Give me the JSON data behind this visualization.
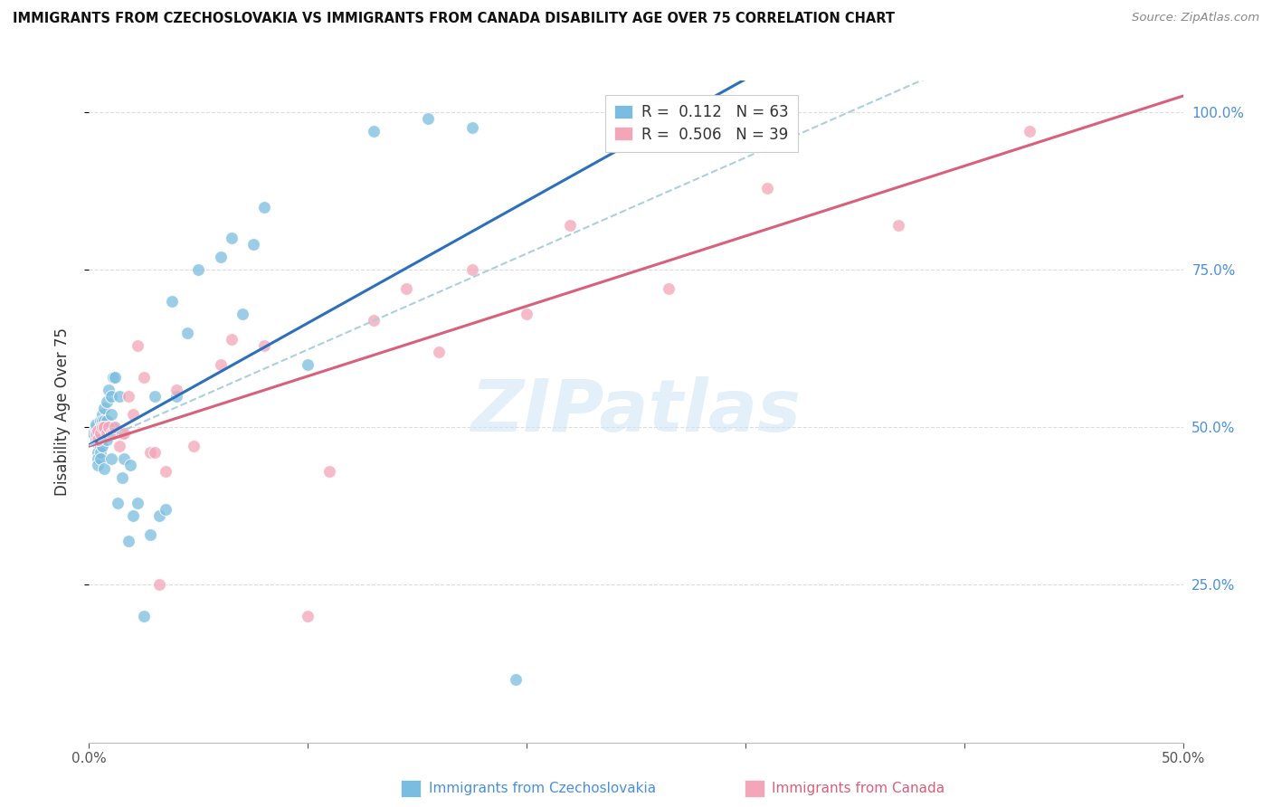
{
  "title": "IMMIGRANTS FROM CZECHOSLOVAKIA VS IMMIGRANTS FROM CANADA DISABILITY AGE OVER 75 CORRELATION CHART",
  "source": "Source: ZipAtlas.com",
  "ylabel": "Disability Age Over 75",
  "xmin": 0.0,
  "xmax": 0.5,
  "ymin": 0.0,
  "ymax": 1.05,
  "y_tick_labels": [
    "25.0%",
    "50.0%",
    "75.0%",
    "100.0%"
  ],
  "y_tick_positions": [
    0.25,
    0.5,
    0.75,
    1.0
  ],
  "x_tick_positions": [
    0.0,
    0.1,
    0.2,
    0.3,
    0.4,
    0.5
  ],
  "legend_label1": "Immigrants from Czechoslovakia",
  "legend_label2": "Immigrants from Canada",
  "legend_R1_val": "0.112",
  "legend_N1_val": "63",
  "legend_R2_val": "0.506",
  "legend_N2_val": "39",
  "color_blue": "#7bbde0",
  "color_pink": "#f4a5b8",
  "color_blue_line": "#2c6fbe",
  "color_pink_line": "#d9607a",
  "color_dashed": "#aacfdf",
  "watermark_text": "ZIPatlas",
  "blue_x": [
    0.002,
    0.003,
    0.003,
    0.003,
    0.003,
    0.004,
    0.004,
    0.004,
    0.004,
    0.005,
    0.005,
    0.005,
    0.005,
    0.005,
    0.005,
    0.005,
    0.006,
    0.006,
    0.006,
    0.006,
    0.007,
    0.007,
    0.007,
    0.007,
    0.008,
    0.008,
    0.008,
    0.009,
    0.009,
    0.01,
    0.01,
    0.01,
    0.011,
    0.011,
    0.012,
    0.013,
    0.014,
    0.015,
    0.016,
    0.018,
    0.019,
    0.02,
    0.022,
    0.025,
    0.028,
    0.03,
    0.032,
    0.035,
    0.038,
    0.04,
    0.045,
    0.05,
    0.06,
    0.065,
    0.07,
    0.075,
    0.08,
    0.1,
    0.13,
    0.155,
    0.175,
    0.195,
    0.24
  ],
  "blue_y": [
    0.49,
    0.495,
    0.5,
    0.505,
    0.48,
    0.475,
    0.46,
    0.45,
    0.44,
    0.51,
    0.5,
    0.49,
    0.485,
    0.47,
    0.46,
    0.45,
    0.52,
    0.51,
    0.49,
    0.47,
    0.53,
    0.51,
    0.49,
    0.435,
    0.54,
    0.51,
    0.48,
    0.56,
    0.5,
    0.55,
    0.52,
    0.45,
    0.58,
    0.5,
    0.58,
    0.38,
    0.55,
    0.42,
    0.45,
    0.32,
    0.44,
    0.36,
    0.38,
    0.2,
    0.33,
    0.55,
    0.36,
    0.37,
    0.7,
    0.55,
    0.65,
    0.75,
    0.77,
    0.8,
    0.68,
    0.79,
    0.85,
    0.6,
    0.97,
    0.99,
    0.975,
    0.1,
    0.99
  ],
  "pink_x": [
    0.003,
    0.004,
    0.004,
    0.005,
    0.006,
    0.007,
    0.008,
    0.009,
    0.01,
    0.011,
    0.012,
    0.014,
    0.015,
    0.016,
    0.018,
    0.02,
    0.022,
    0.025,
    0.028,
    0.03,
    0.032,
    0.035,
    0.04,
    0.048,
    0.06,
    0.065,
    0.08,
    0.1,
    0.11,
    0.13,
    0.145,
    0.16,
    0.175,
    0.2,
    0.22,
    0.265,
    0.31,
    0.37,
    0.43
  ],
  "pink_y": [
    0.49,
    0.495,
    0.48,
    0.49,
    0.5,
    0.5,
    0.49,
    0.5,
    0.49,
    0.49,
    0.5,
    0.47,
    0.49,
    0.49,
    0.55,
    0.52,
    0.63,
    0.58,
    0.46,
    0.46,
    0.25,
    0.43,
    0.56,
    0.47,
    0.6,
    0.64,
    0.63,
    0.2,
    0.43,
    0.67,
    0.72,
    0.62,
    0.75,
    0.68,
    0.82,
    0.72,
    0.88,
    0.82,
    0.97
  ]
}
